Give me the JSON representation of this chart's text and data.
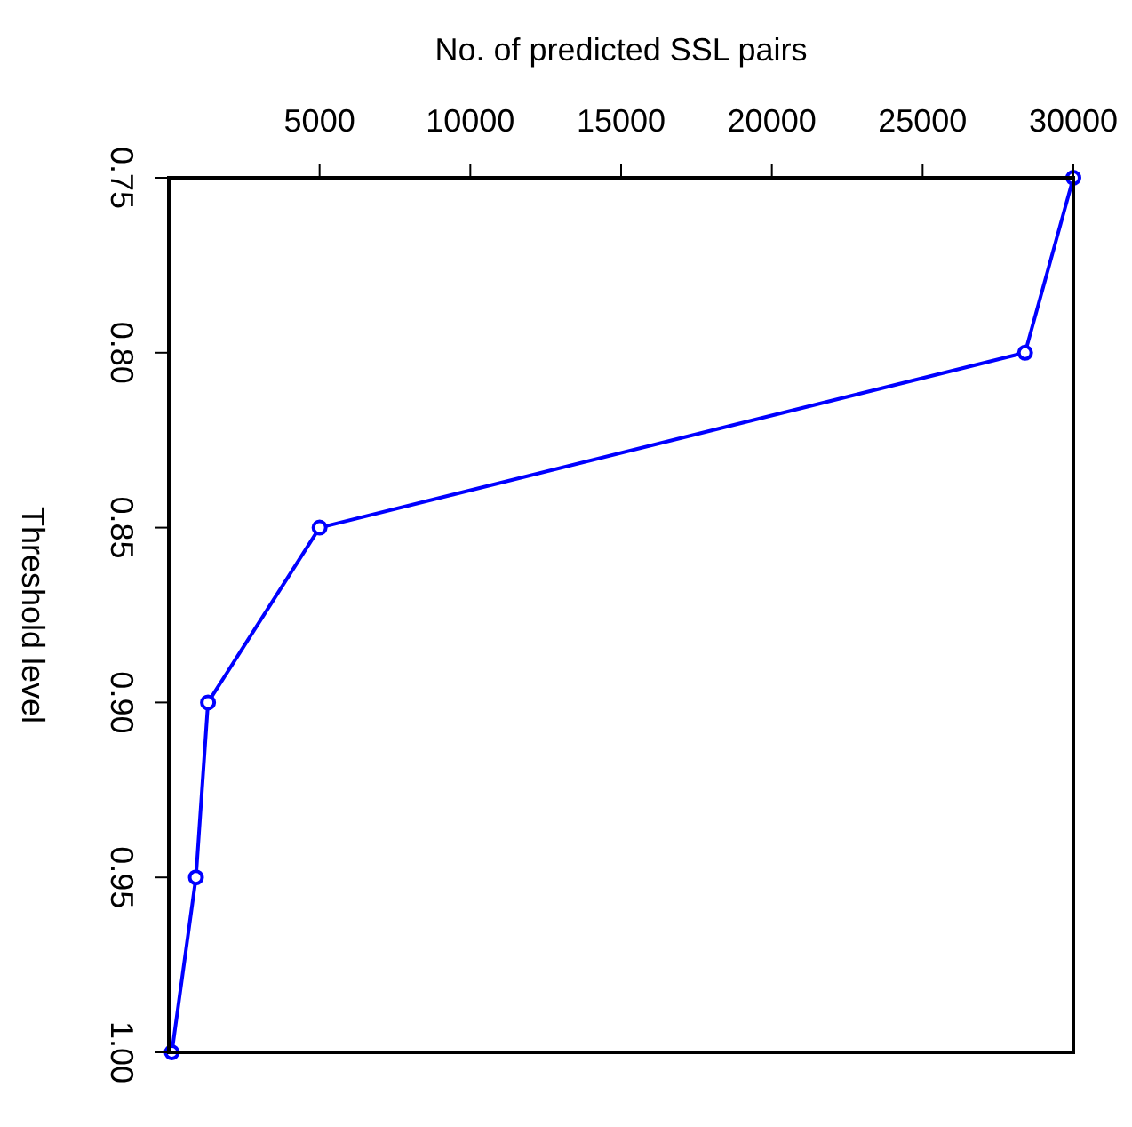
{
  "chart_data": {
    "type": "line",
    "xlabel": "No. of predicted SSL pairs",
    "ylabel": "Threshold level",
    "x": [
      30000,
      28400,
      5000,
      1300,
      900,
      100
    ],
    "series": [
      {
        "color": "#0000ff",
        "values": [
          0.75,
          0.8,
          0.85,
          0.9,
          0.95,
          1.0
        ]
      }
    ],
    "xlim": [
      0,
      30000
    ],
    "xticks": [
      5000,
      10000,
      15000,
      20000,
      25000,
      30000
    ],
    "ylim": [
      1.0,
      0.75
    ],
    "yticks": [
      {
        "value": 0.75,
        "label": "0.75"
      },
      {
        "value": 0.8,
        "label": "0.80"
      },
      {
        "value": 0.85,
        "label": "0.85"
      },
      {
        "value": 0.9,
        "label": "0.90"
      },
      {
        "value": 0.95,
        "label": "0.95"
      },
      {
        "value": 1.0,
        "label": "1.00"
      }
    ],
    "marker": "circle",
    "line_style": "solid"
  }
}
